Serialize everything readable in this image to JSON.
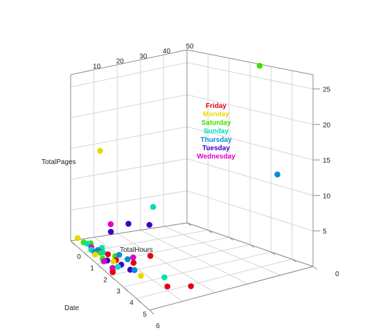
{
  "chart_data": {
    "type": "scatter",
    "subtype": "3d-scatter",
    "title": "",
    "axes": {
      "x": {
        "label": "TotalHours",
        "ticks": [
          "10",
          "20",
          "30",
          "40",
          "50"
        ],
        "range": [
          0,
          50
        ]
      },
      "y": {
        "label": "TotalPages",
        "ticks": [
          "0",
          "5",
          "10",
          "15",
          "20",
          "25"
        ],
        "range": [
          0,
          27
        ]
      },
      "z": {
        "label": "Date",
        "ticks": [
          "0",
          "1",
          "2",
          "3",
          "4",
          "5",
          "6"
        ],
        "range": [
          0,
          6
        ]
      }
    },
    "grid": true,
    "legend": {
      "position": "inside-top-center",
      "items": [
        {
          "name": "Friday",
          "color": "#e6000f"
        },
        {
          "name": "Monday",
          "color": "#e8d900"
        },
        {
          "name": "Saturday",
          "color": "#3ee000"
        },
        {
          "name": "Sunday",
          "color": "#00e0b5"
        },
        {
          "name": "Thursday",
          "color": "#008fd4"
        },
        {
          "name": "Tuesday",
          "color": "#3a00c8"
        },
        {
          "name": "Wednesday",
          "color": "#e200c8"
        }
      ]
    },
    "series": [
      {
        "name": "Friday",
        "color": "#e6000f",
        "points": [
          {
            "x": 5.2,
            "y": 0.2,
            "z": 1.3
          },
          {
            "x": 1.4,
            "y": 0.2,
            "z": 2.9
          },
          {
            "x": 10.5,
            "y": 0.3,
            "z": 2.6
          },
          {
            "x": 6.3,
            "y": 0.3,
            "z": 1.6
          },
          {
            "x": 16.5,
            "y": 0.2,
            "z": 5.2
          },
          {
            "x": 10.9,
            "y": 0.2,
            "z": 4.8
          },
          {
            "x": 18.4,
            "y": 0.2,
            "z": 2.3
          },
          {
            "x": 6.7,
            "y": 0.2,
            "z": 2.1
          }
        ]
      },
      {
        "name": "Monday",
        "color": "#e8d900",
        "points": [
          {
            "x": 2.4,
            "y": 0.5,
            "z": 0.1
          },
          {
            "x": 5.2,
            "y": 0.3,
            "z": 2.2
          },
          {
            "x": 3.8,
            "y": 16.5,
            "z": 1.5
          },
          {
            "x": 2.4,
            "y": 0.2,
            "z": 1.4
          },
          {
            "x": 7.9,
            "y": 0.2,
            "z": 3.6
          }
        ]
      },
      {
        "name": "Saturday",
        "color": "#3ee000",
        "points": [
          {
            "x": 2.7,
            "y": 0.5,
            "z": 0.5
          },
          {
            "x": 5.0,
            "y": 0.4,
            "z": 0.6
          },
          {
            "x": 41.5,
            "y": 28.5,
            "z": 4.7
          },
          {
            "x": 4.6,
            "y": 0.3,
            "z": 1.4
          },
          {
            "x": 8.0,
            "y": 0.2,
            "z": 1.8
          },
          {
            "x": 3.2,
            "y": 0.2,
            "z": 1.8
          }
        ]
      },
      {
        "name": "Sunday",
        "color": "#00e0b5",
        "points": [
          {
            "x": 3.7,
            "y": 0.4,
            "z": 0.6
          },
          {
            "x": 5.5,
            "y": 0.3,
            "z": 1.4
          },
          {
            "x": 16.5,
            "y": 8.5,
            "z": 2.8
          },
          {
            "x": 13.4,
            "y": 0.2,
            "z": 4.1
          },
          {
            "x": 3.0,
            "y": 0.2,
            "z": 1.0
          },
          {
            "x": 2.5,
            "y": 0.2,
            "z": 2.0
          },
          {
            "x": 7.3,
            "y": 0.2,
            "z": 1.0
          },
          {
            "x": 4.8,
            "y": 0.2,
            "z": 2.6
          }
        ]
      },
      {
        "name": "Thursday",
        "color": "#008fd4",
        "points": [
          {
            "x": 4.5,
            "y": 0.4,
            "z": 1.2
          },
          {
            "x": 9.5,
            "y": 0.3,
            "z": 1.8
          },
          {
            "x": 44.0,
            "y": 13.0,
            "z": 5.2
          },
          {
            "x": 8.2,
            "y": 0.2,
            "z": 3.1
          },
          {
            "x": 3.2,
            "y": 0.2,
            "z": 1.2
          },
          {
            "x": 10.5,
            "y": 0.2,
            "z": 2.2
          }
        ]
      },
      {
        "name": "Tuesday",
        "color": "#3a00c8",
        "points": [
          {
            "x": 8.0,
            "y": 3.5,
            "z": 1.5
          },
          {
            "x": 12.5,
            "y": 5.0,
            "z": 1.9
          },
          {
            "x": 13.5,
            "y": 6.5,
            "z": 3.1
          },
          {
            "x": 6.5,
            "y": 0.2,
            "z": 2.5
          },
          {
            "x": 3.9,
            "y": 0.2,
            "z": 2.0
          },
          {
            "x": 7.2,
            "y": 0.2,
            "z": 3.0
          }
        ]
      },
      {
        "name": "Wednesday",
        "color": "#e200c8",
        "points": [
          {
            "x": 3.6,
            "y": 0.4,
            "z": 0.9
          },
          {
            "x": 8.5,
            "y": 4.5,
            "z": 1.4
          },
          {
            "x": 12.0,
            "y": 0.5,
            "z": 2.3
          },
          {
            "x": 2.8,
            "y": 0.2,
            "z": 2.6
          },
          {
            "x": 1.9,
            "y": 0.2,
            "z": 2.8
          },
          {
            "x": 2.7,
            "y": 0.2,
            "z": 2.0
          }
        ]
      }
    ]
  }
}
